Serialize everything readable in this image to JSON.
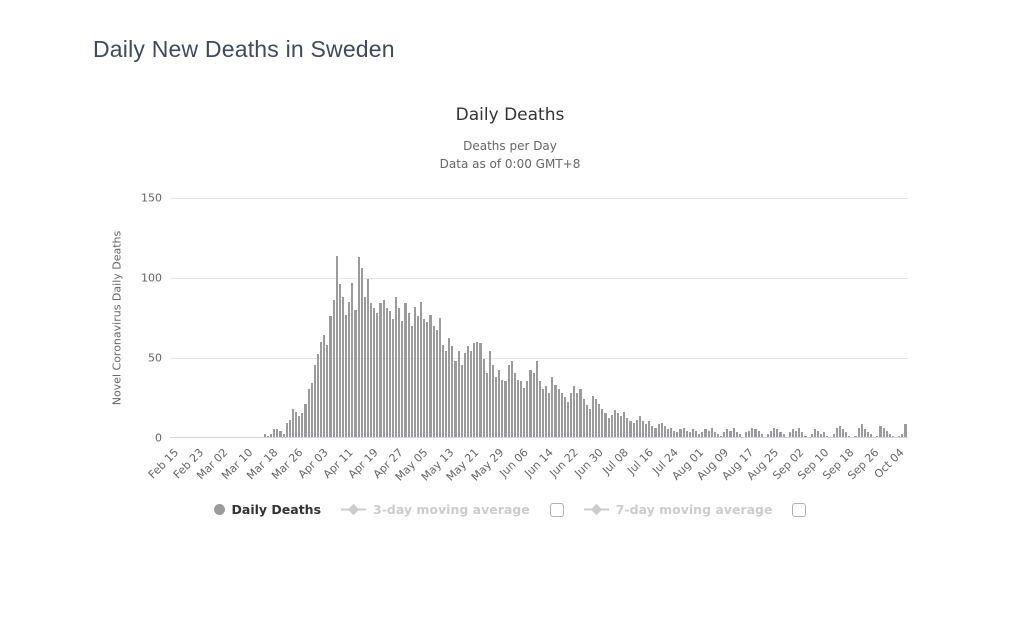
{
  "page": {
    "title": "Daily New Deaths in Sweden"
  },
  "chart": {
    "title": "Daily Deaths",
    "subtitle_line1": "Deaths per Day",
    "subtitle_line2": "Data as of 0:00 GMT+8",
    "y_axis_title": "Novel Coronavirus Daily Deaths",
    "y_ticks": [
      0,
      50,
      100,
      150
    ]
  },
  "legend": {
    "items": [
      {
        "name": "daily-deaths",
        "label": "Daily Deaths",
        "marker": "circle-icon",
        "active": true,
        "has_checkbox": false
      },
      {
        "name": "3-day-moving-average",
        "label": "3-day moving average",
        "marker": "line-diamond-icon",
        "active": false,
        "has_checkbox": true,
        "checked": false
      },
      {
        "name": "7-day-moving-average",
        "label": "7-day moving average",
        "marker": "line-diamond-icon",
        "active": false,
        "has_checkbox": true,
        "checked": false
      }
    ]
  },
  "colors": {
    "bar": "#9b9b9b",
    "gridline": "#e6e6e6",
    "axis_line": "#ccd6eb",
    "page_title": "#3e4b5d",
    "subtitle": "#666666",
    "legend_active_text": "#333333",
    "legend_inactive": "#cccccc"
  },
  "chart_data": {
    "type": "bar",
    "title": "Daily Deaths",
    "subtitle": "Deaths per Day — Data as of 0:00 GMT+8",
    "ylabel": "Novel Coronavirus Daily Deaths",
    "xlabel": "",
    "ylim": [
      0,
      150
    ],
    "grid": true,
    "legend_position": "bottom",
    "x_start_label": "Feb 15",
    "tick_every": 8,
    "x_tick_labels": [
      "Feb 15",
      "Feb 23",
      "Mar 02",
      "Mar 10",
      "Mar 18",
      "Mar 26",
      "Apr 03",
      "Apr 11",
      "Apr 19",
      "Apr 27",
      "May 05",
      "May 13",
      "May 21",
      "May 29",
      "Jun 06",
      "Jun 14",
      "Jun 22",
      "Jun 30",
      "Jul 08",
      "Jul 16",
      "Jul 24",
      "Aug 01",
      "Aug 09",
      "Aug 17",
      "Aug 25",
      "Sep 02",
      "Sep 10",
      "Sep 18",
      "Sep 26",
      "Oct 04"
    ],
    "series_name": "Daily Deaths",
    "values": [
      0,
      0,
      0,
      0,
      0,
      0,
      0,
      0,
      0,
      0,
      0,
      0,
      0,
      0,
      0,
      0,
      0,
      0,
      0,
      0,
      0,
      0,
      0,
      0,
      0,
      0,
      0,
      0,
      0,
      0,
      2,
      1,
      2,
      5,
      5,
      4,
      2,
      9,
      11,
      18,
      16,
      13,
      15,
      21,
      30,
      34,
      45,
      52,
      60,
      64,
      58,
      76,
      86,
      114,
      96,
      88,
      77,
      85,
      97,
      80,
      113,
      106,
      88,
      99,
      84,
      81,
      78,
      84,
      86,
      81,
      79,
      74,
      88,
      81,
      73,
      84,
      78,
      70,
      82,
      76,
      85,
      74,
      72,
      77,
      70,
      67,
      75,
      58,
      54,
      62,
      57,
      48,
      54,
      45,
      53,
      57,
      54,
      59,
      60,
      59,
      49,
      40,
      54,
      45,
      38,
      42,
      36,
      35,
      45,
      48,
      40,
      36,
      35,
      31,
      35,
      42,
      40,
      48,
      35,
      30,
      32,
      28,
      38,
      33,
      30,
      28,
      25,
      22,
      28,
      32,
      28,
      30,
      24,
      20,
      18,
      26,
      24,
      21,
      18,
      15,
      12,
      14,
      17,
      15,
      13,
      16,
      12,
      10,
      9,
      11,
      13,
      10,
      8,
      10,
      7,
      6,
      8,
      9,
      7,
      5,
      6,
      4,
      3,
      5,
      6,
      4,
      3,
      5,
      4,
      2,
      3,
      5,
      4,
      6,
      3,
      2,
      1,
      3,
      5,
      4,
      6,
      3,
      2,
      0,
      3,
      4,
      6,
      5,
      4,
      2,
      0,
      2,
      4,
      6,
      5,
      3,
      2,
      0,
      3,
      5,
      4,
      6,
      3,
      1,
      0,
      2,
      5,
      4,
      2,
      3,
      1,
      0,
      2,
      6,
      7,
      5,
      3,
      1,
      0,
      1,
      6,
      8,
      5,
      3,
      2,
      0,
      1,
      7,
      6,
      4,
      2,
      1,
      0,
      1,
      2,
      8
    ]
  }
}
